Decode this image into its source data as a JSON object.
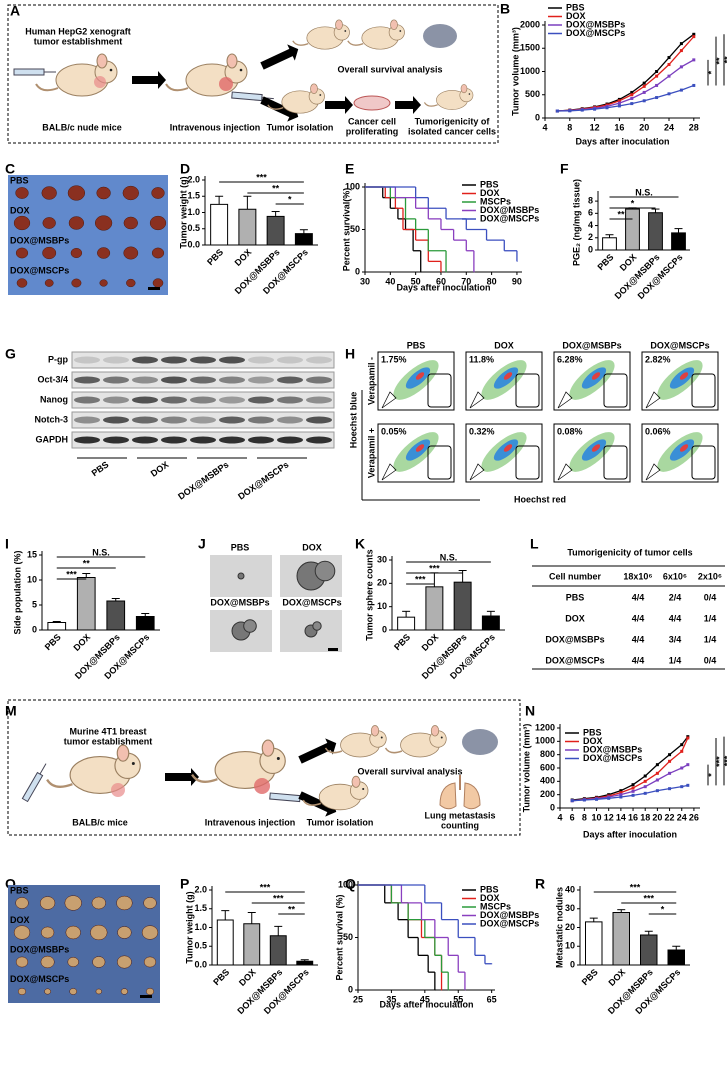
{
  "panel_labels": [
    "A",
    "B",
    "C",
    "D",
    "E",
    "F",
    "G",
    "H",
    "I",
    "J",
    "K",
    "L",
    "M",
    "N",
    "O",
    "P",
    "Q",
    "R"
  ],
  "schematic_a": {
    "title_lines": [
      "Human HepG2 xenograft",
      "tumor establishment"
    ],
    "mice": "BALB/c nude mice",
    "injection": "Intravenous injection",
    "survival": "Overall survival analysis",
    "isolation": "Tumor isolation",
    "proliferating": [
      "Cancer cell",
      "proliferating"
    ],
    "tumorigenicity": [
      "Tumorigenicity of",
      "isolated cancer cells"
    ]
  },
  "photo_c": {
    "labels": [
      "PBS",
      "DOX",
      "DOX@MSBPs",
      "DOX@MSCPs"
    ]
  },
  "blot_g": {
    "proteins": [
      "P-gp",
      "Oct-3/4",
      "Nanog",
      "Notch-3",
      "GAPDH"
    ],
    "groups": [
      "PBS",
      "DOX",
      "DOX@MSBPs",
      "DOX@MSCPs"
    ]
  },
  "flow_h": {
    "columns": [
      "PBS",
      "DOX",
      "DOX@MSBPs",
      "DOX@MSCPs"
    ],
    "rows": [
      "Verapamil -",
      "Verapamil +"
    ],
    "percentages": [
      [
        "1.75%",
        "11.8%",
        "6.28%",
        "2.82%"
      ],
      [
        "0.05%",
        "0.32%",
        "0.08%",
        "0.06%"
      ]
    ],
    "xlabel": "Hoechst red",
    "ylabel": "Hoechst blue"
  },
  "photo_j": {
    "labels": [
      "PBS",
      "DOX",
      "DOX@MSBPs",
      "DOX@MSCPs"
    ]
  },
  "table_l": {
    "title": "Tumorigenicity of tumor cells",
    "header": [
      "Cell number",
      "18x10⁶",
      "6x10⁶",
      "2x10⁶"
    ],
    "rows": [
      [
        "PBS",
        "4/4",
        "2/4",
        "0/4"
      ],
      [
        "DOX",
        "4/4",
        "4/4",
        "1/4"
      ],
      [
        "DOX@MSBPs",
        "4/4",
        "3/4",
        "1/4"
      ],
      [
        "DOX@MSCPs",
        "4/4",
        "1/4",
        "0/4"
      ]
    ]
  },
  "schematic_m": {
    "title_lines": [
      "Murine 4T1 breast",
      "tumor establishment"
    ],
    "mice": "BALB/c mice",
    "injection": "Intravenous injection",
    "survival": "Overall survival analysis",
    "isolation": "Tumor isolation",
    "metastasis": [
      "Lung metastasis",
      "counting"
    ]
  },
  "photo_o": {
    "labels": [
      "PBS",
      "DOX",
      "DOX@MSBPs",
      "DOX@MSCPs"
    ]
  },
  "chart_data": [
    {
      "type": "line",
      "ylabel": "Tumor volume (mm³)",
      "xlabel": "Days after inoculation",
      "x": [
        6,
        8,
        10,
        12,
        14,
        16,
        18,
        20,
        22,
        24,
        26,
        28
      ],
      "xlim": [
        4,
        29
      ],
      "xticks": [
        4,
        8,
        12,
        16,
        20,
        24,
        28
      ],
      "ylim": [
        0,
        2000
      ],
      "yticks": [
        0,
        500,
        1000,
        1500,
        2000
      ],
      "series": [
        {
          "name": "PBS",
          "color": "#000000",
          "values": [
            150,
            170,
            200,
            240,
            300,
            400,
            550,
            750,
            1000,
            1300,
            1600,
            1800
          ]
        },
        {
          "name": "DOX",
          "color": "#e0201b",
          "values": [
            150,
            165,
            190,
            230,
            280,
            370,
            500,
            680,
            900,
            1150,
            1450,
            1750
          ]
        },
        {
          "name": "DOX@MSBPs",
          "color": "#7b3fbf",
          "values": [
            150,
            160,
            180,
            210,
            250,
            320,
            420,
            550,
            700,
            900,
            1100,
            1250
          ]
        },
        {
          "name": "DOX@MSCPs",
          "color": "#3b4fbf",
          "values": [
            150,
            155,
            170,
            190,
            220,
            260,
            310,
            370,
            440,
            520,
            600,
            700
          ]
        }
      ],
      "annotations": [
        {
          "text": "*",
          "from": 2,
          "to": 3
        },
        {
          "text": "**",
          "from": 1,
          "to": 3
        },
        {
          "text": "**",
          "from": 0,
          "to": 3
        }
      ]
    },
    {
      "type": "bar",
      "ylabel": "Tumor weight (g)",
      "categories": [
        "PBS",
        "DOX",
        "DOX@MSBPs",
        "DOX@MSCPs"
      ],
      "values": [
        1.25,
        1.1,
        0.88,
        0.35
      ],
      "errors": [
        0.25,
        0.4,
        0.15,
        0.12
      ],
      "colors": [
        "#ffffff",
        "#b0b0b0",
        "#505050",
        "#000000"
      ],
      "ylim": [
        0,
        2
      ],
      "yticks": [
        {
          "value": 0,
          "label": "0.0"
        },
        0.5,
        {
          "value": 1,
          "label": "1.0"
        },
        1.5,
        {
          "value": 2,
          "label": "2.0"
        }
      ],
      "annotations": [
        {
          "text": "***",
          "from": 0,
          "to": 3
        },
        {
          "text": "**",
          "from": 1,
          "to": 3
        },
        {
          "text": "*",
          "from": 2,
          "to": 3
        }
      ]
    },
    {
      "type": "step",
      "ylabel": "Percent survival(%)",
      "xlabel": "Days after inoculation",
      "xlim": [
        30,
        92
      ],
      "xticks": [
        30,
        40,
        50,
        60,
        70,
        80,
        90
      ],
      "ylim": [
        0,
        100
      ],
      "yticks": [
        0,
        50,
        100
      ],
      "series": [
        {
          "name": "PBS",
          "color": "#000000",
          "x": [
            30,
            37,
            40,
            43,
            46,
            49,
            52
          ],
          "values": [
            100,
            87.5,
            75,
            62.5,
            50,
            25,
            0
          ]
        },
        {
          "name": "DOX",
          "color": "#e0201b",
          "x": [
            30,
            38,
            42,
            45,
            50,
            55,
            60
          ],
          "values": [
            100,
            87.5,
            75,
            50,
            37.5,
            12.5,
            0
          ]
        },
        {
          "name": "MSCPs",
          "color": "#2a9a3a",
          "x": [
            30,
            40,
            46,
            50,
            55,
            62
          ],
          "values": [
            100,
            87.5,
            62.5,
            50,
            25,
            0
          ]
        },
        {
          "name": "DOX@MSBPs",
          "color": "#8a3fbf",
          "x": [
            30,
            42,
            50,
            55,
            60,
            65,
            70,
            73
          ],
          "values": [
            100,
            87.5,
            75,
            62.5,
            50,
            37.5,
            25,
            0
          ]
        },
        {
          "name": "DOX@MSCPs",
          "color": "#3b4fbf",
          "x": [
            30,
            50,
            55,
            62,
            70,
            78,
            85,
            90
          ],
          "values": [
            100,
            87.5,
            75,
            62.5,
            50,
            37.5,
            25,
            12.5
          ]
        }
      ]
    },
    {
      "type": "bar",
      "ylabel": "PGE₂ (ng/mg tissue)",
      "categories": [
        "PBS",
        "DOX",
        "DOX@MSBPs",
        "DOX@MSCPs"
      ],
      "values": [
        2.0,
        6.7,
        6.1,
        2.8
      ],
      "errors": [
        0.5,
        0.2,
        0.6,
        0.7
      ],
      "colors": [
        "#ffffff",
        "#b0b0b0",
        "#505050",
        "#000000"
      ],
      "ylim": [
        0,
        9
      ],
      "yticks": [
        0,
        2,
        4,
        6,
        8
      ],
      "annotations": [
        {
          "text": "N.S.",
          "from": 0,
          "to": 3
        },
        {
          "text": "*",
          "from": 0,
          "to": 2
        },
        {
          "text": "**",
          "from": 0,
          "to": 1
        }
      ]
    },
    {
      "type": "bar",
      "ylabel": "Side population (%)",
      "categories": [
        "PBS",
        "DOX",
        "DOX@MSBPs",
        "DOX@MSCPs"
      ],
      "values": [
        1.5,
        10.5,
        5.8,
        2.7
      ],
      "errors": [
        0.2,
        0.8,
        0.5,
        0.6
      ],
      "colors": [
        "#ffffff",
        "#b0b0b0",
        "#505050",
        "#000000"
      ],
      "ylim": [
        0,
        15
      ],
      "yticks": [
        0,
        5,
        10,
        15
      ],
      "annotations": [
        {
          "text": "N.S.",
          "from": 0,
          "to": 3
        },
        {
          "text": "**",
          "from": 0,
          "to": 2
        },
        {
          "text": "***",
          "from": 0,
          "to": 1
        }
      ]
    },
    {
      "type": "bar",
      "ylabel": "Tumor sphere counts",
      "categories": [
        "PBS",
        "DOX",
        "DOX@MSBPs",
        "DOX@MSCPs"
      ],
      "values": [
        5.5,
        18.5,
        20.5,
        6
      ],
      "errors": [
        2.5,
        6,
        5,
        2
      ],
      "colors": [
        "#ffffff",
        "#b0b0b0",
        "#505050",
        "#000000"
      ],
      "ylim": [
        0,
        30
      ],
      "yticks": [
        0,
        10,
        20,
        30
      ],
      "annotations": [
        {
          "text": "N.S.",
          "from": 0,
          "to": 3
        },
        {
          "text": "***",
          "from": 0,
          "to": 2
        },
        {
          "text": "***",
          "from": 0,
          "to": 1
        }
      ]
    },
    {
      "type": "line",
      "ylabel": "Tumor volume (mm³)",
      "xlabel": "Days after inoculation",
      "x": [
        6,
        8,
        10,
        12,
        14,
        16,
        18,
        20,
        22,
        24,
        25
      ],
      "xlim": [
        4,
        27
      ],
      "xticks": [
        4,
        6,
        8,
        10,
        12,
        14,
        16,
        18,
        20,
        22,
        24,
        26
      ],
      "ylim": [
        0,
        1200
      ],
      "yticks": [
        0,
        200,
        400,
        600,
        800,
        1000,
        1200
      ],
      "series": [
        {
          "name": "PBS",
          "color": "#000000",
          "values": [
            120,
            140,
            160,
            200,
            260,
            350,
            480,
            650,
            800,
            950,
            1070
          ]
        },
        {
          "name": "DOX",
          "color": "#e0201b",
          "values": [
            110,
            130,
            150,
            180,
            230,
            300,
            400,
            520,
            700,
            850,
            1050
          ]
        },
        {
          "name": "DOX@MSBPs",
          "color": "#7b3fbf",
          "values": [
            110,
            125,
            140,
            165,
            200,
            250,
            320,
            420,
            520,
            600,
            650
          ]
        },
        {
          "name": "DOX@MSCPs",
          "color": "#3b4fbf",
          "values": [
            110,
            120,
            130,
            145,
            165,
            190,
            220,
            260,
            290,
            320,
            340
          ]
        }
      ],
      "annotations": [
        {
          "text": "*",
          "from": 2,
          "to": 3
        },
        {
          "text": "***",
          "from": 1,
          "to": 3
        },
        {
          "text": "***",
          "from": 0,
          "to": 3
        }
      ]
    },
    {
      "type": "bar",
      "ylabel": "Tumor weight (g)",
      "categories": [
        "PBS",
        "DOX",
        "DOX@MSBPs",
        "DOX@MSCPs"
      ],
      "values": [
        1.2,
        1.1,
        0.78,
        0.1
      ],
      "errors": [
        0.25,
        0.3,
        0.25,
        0.04
      ],
      "colors": [
        "#ffffff",
        "#b0b0b0",
        "#505050",
        "#000000"
      ],
      "ylim": [
        0,
        2
      ],
      "yticks": [
        {
          "value": 0,
          "label": "0.0"
        },
        0.5,
        {
          "value": 1,
          "label": "1.0"
        },
        1.5,
        {
          "value": 2,
          "label": "2.0"
        }
      ],
      "annotations": [
        {
          "text": "***",
          "from": 0,
          "to": 3
        },
        {
          "text": "***",
          "from": 1,
          "to": 3
        },
        {
          "text": "**",
          "from": 2,
          "to": 3
        }
      ]
    },
    {
      "type": "step",
      "ylabel": "Percent survival (%)",
      "xlabel": "Days after inoculation",
      "xlim": [
        25,
        66
      ],
      "xticks": [
        25,
        35,
        45,
        55,
        65
      ],
      "ylim": [
        0,
        100
      ],
      "yticks": [
        0,
        50,
        100
      ],
      "series": [
        {
          "name": "PBS",
          "color": "#000000",
          "x": [
            25,
            33,
            37,
            40,
            43,
            46,
            48
          ],
          "values": [
            100,
            83,
            67,
            50,
            33,
            17,
            0
          ]
        },
        {
          "name": "DOX",
          "color": "#e0201b",
          "x": [
            25,
            35,
            40,
            44,
            48,
            50
          ],
          "values": [
            100,
            83,
            67,
            50,
            33,
            0
          ]
        },
        {
          "name": "MSCPs",
          "color": "#2a9a3a",
          "x": [
            25,
            35,
            40,
            45,
            48,
            50,
            52
          ],
          "values": [
            100,
            83,
            67,
            50,
            33,
            17,
            0
          ]
        },
        {
          "name": "DOX@MSBPs",
          "color": "#8a3fbf",
          "x": [
            25,
            38,
            44,
            48,
            52,
            55,
            57
          ],
          "values": [
            100,
            83,
            67,
            50,
            33,
            17,
            0
          ]
        },
        {
          "name": "DOX@MSCPs",
          "color": "#3b4fbf",
          "x": [
            25,
            45,
            50,
            55,
            60,
            63,
            65
          ],
          "values": [
            100,
            83,
            67,
            50,
            33,
            25,
            25
          ]
        }
      ]
    },
    {
      "type": "bar",
      "ylabel": "Metastatic nodules",
      "categories": [
        "PBS",
        "DOX",
        "DOX@MSBPs",
        "DOX@MSCPs"
      ],
      "values": [
        23,
        28,
        16,
        8
      ],
      "errors": [
        2,
        1.5,
        2,
        2
      ],
      "colors": [
        "#ffffff",
        "#b0b0b0",
        "#505050",
        "#000000"
      ],
      "ylim": [
        0,
        40
      ],
      "yticks": [
        0,
        10,
        20,
        30,
        40
      ],
      "annotations": [
        {
          "text": "***",
          "from": 0,
          "to": 3
        },
        {
          "text": "***",
          "from": 1,
          "to": 3
        },
        {
          "text": "*",
          "from": 2,
          "to": 3
        }
      ]
    }
  ]
}
